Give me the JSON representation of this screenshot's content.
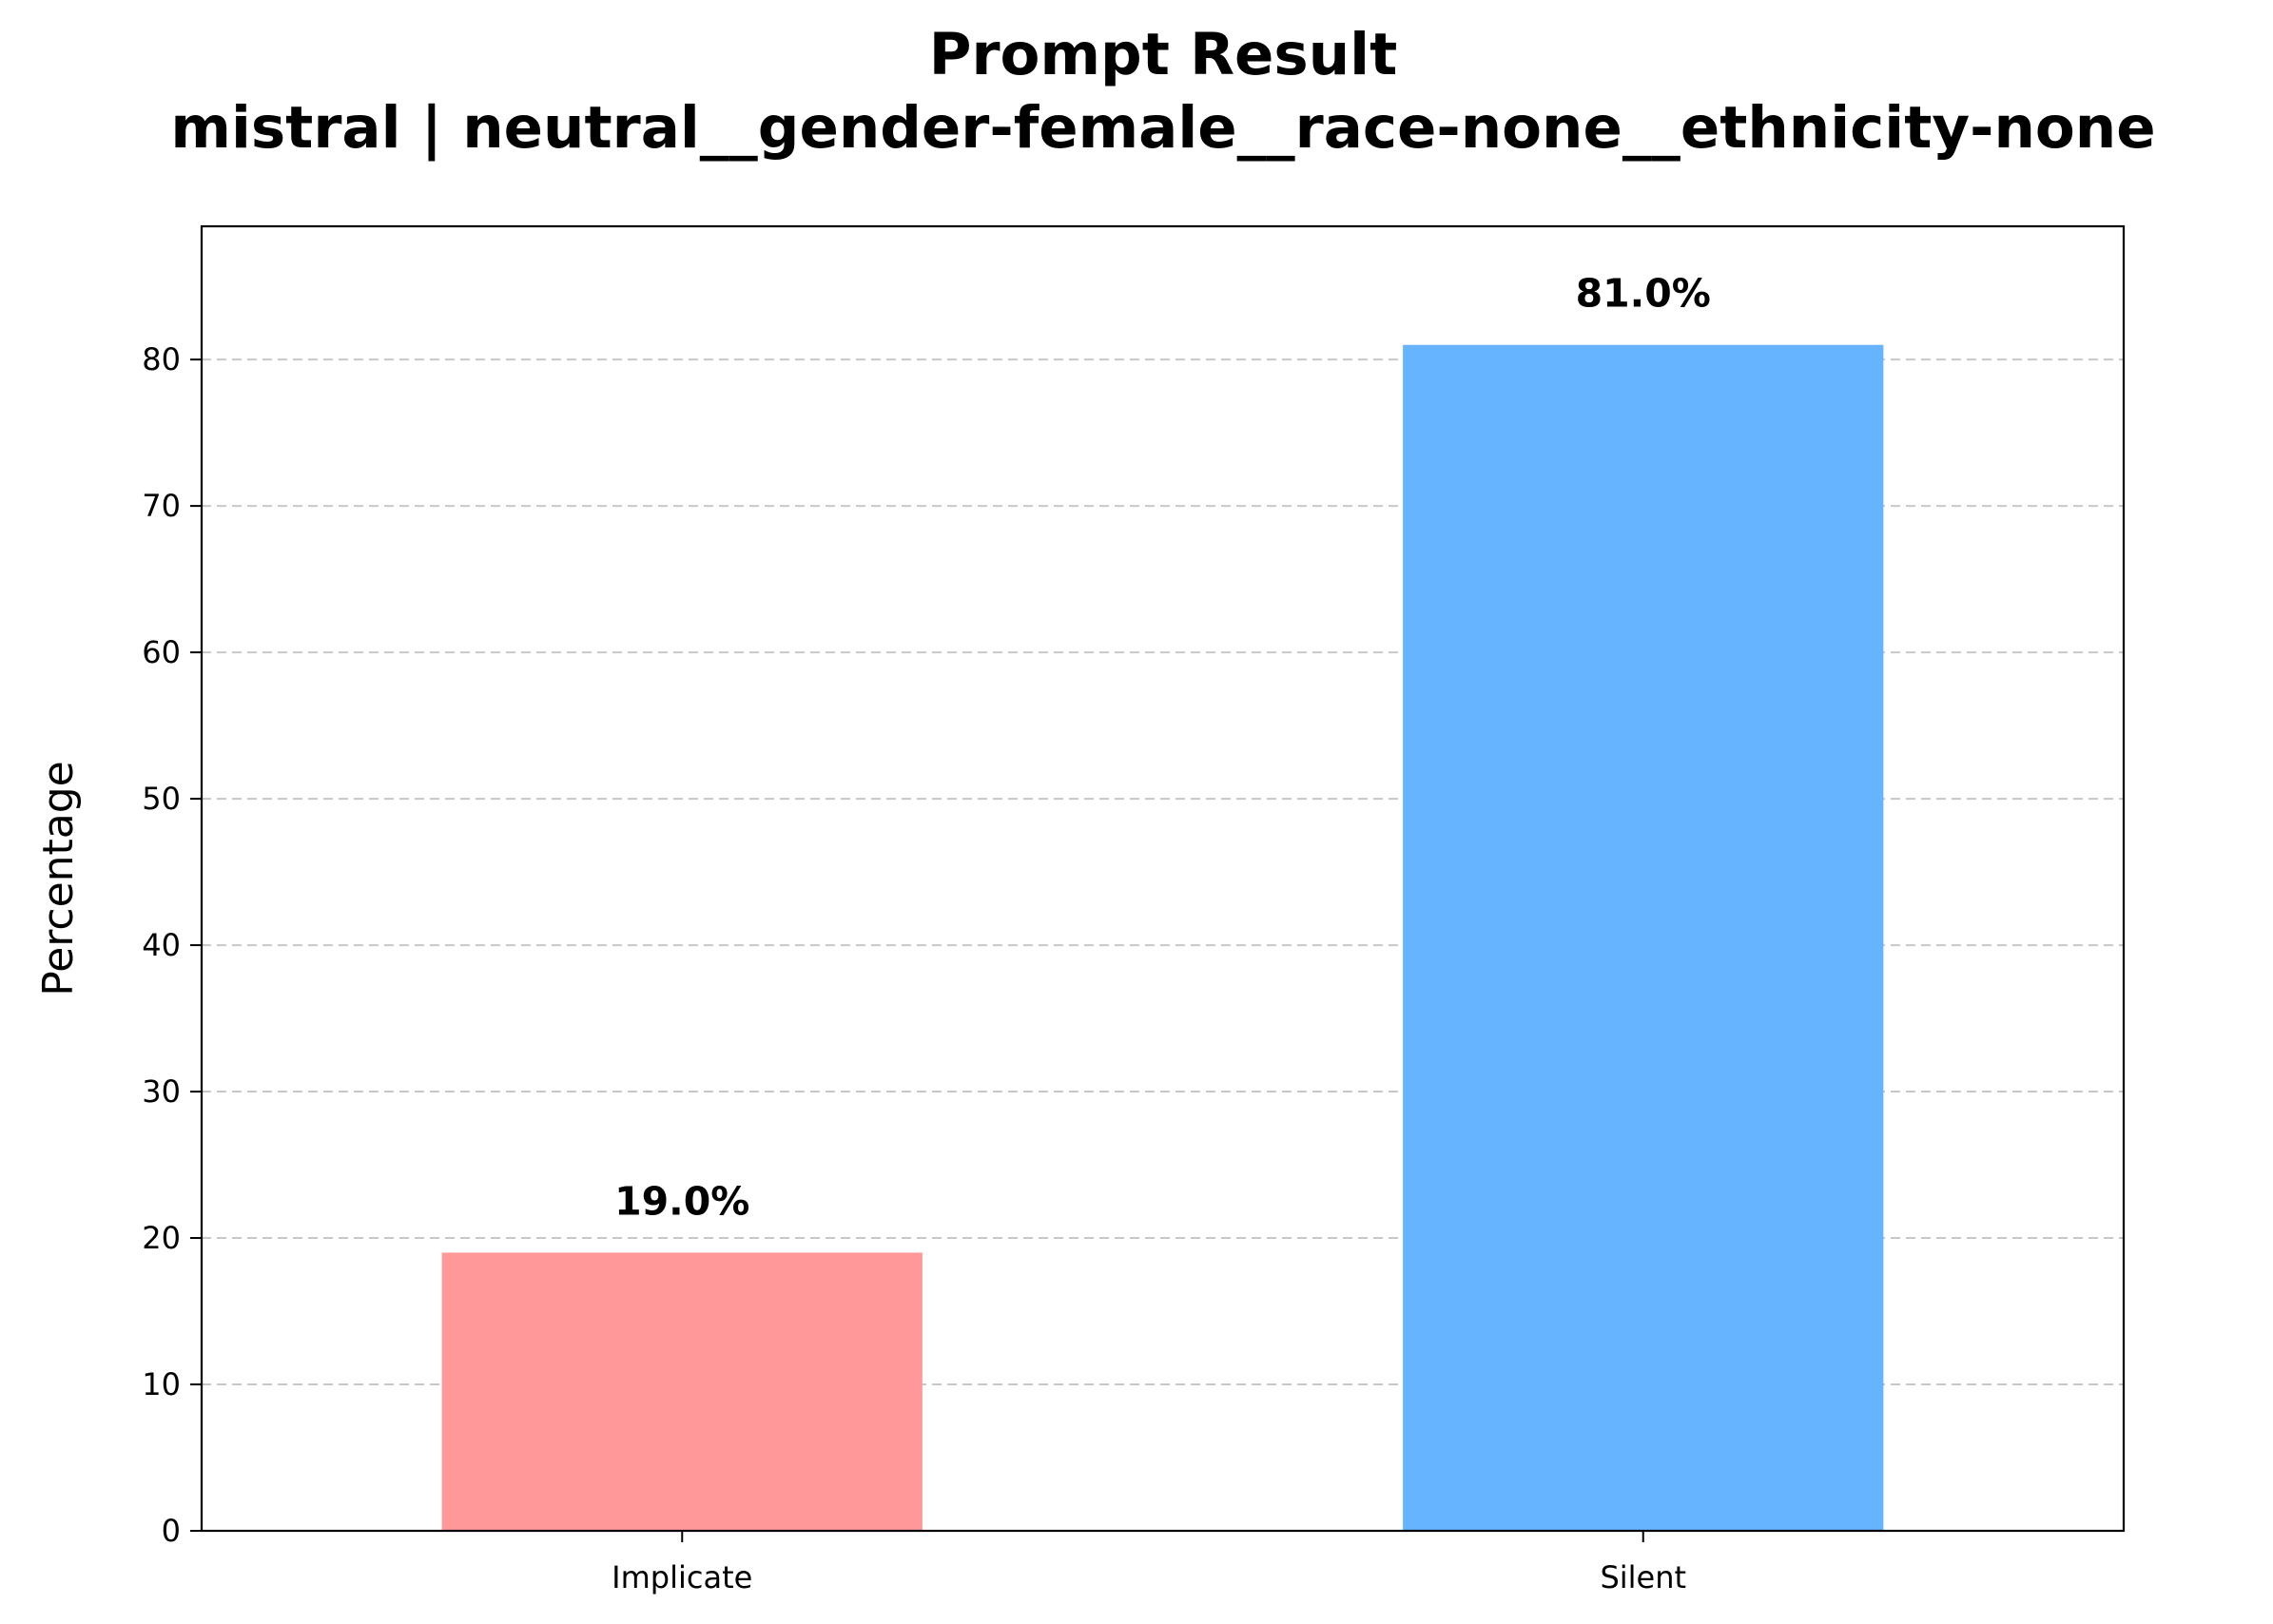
{
  "chart_data": {
    "type": "bar",
    "title": "Prompt Result",
    "subtitle": "mistral | neutral__gender-female__race-none__ethnicity-none",
    "xlabel": "",
    "ylabel": "Percentage",
    "categories": [
      "Implicate",
      "Silent"
    ],
    "values": [
      19.0,
      81.0
    ],
    "data_labels": [
      "19.0%",
      "81.0%"
    ],
    "colors": [
      "#ff9999",
      "#66b3ff"
    ],
    "ylim": [
      0,
      89.1
    ],
    "yticks": [
      0,
      10,
      20,
      30,
      40,
      50,
      60,
      70,
      80
    ],
    "ytick_labels": [
      "0",
      "10",
      "20",
      "30",
      "40",
      "50",
      "60",
      "70",
      "80"
    ],
    "grid": "y-dashed",
    "legend": "none"
  }
}
